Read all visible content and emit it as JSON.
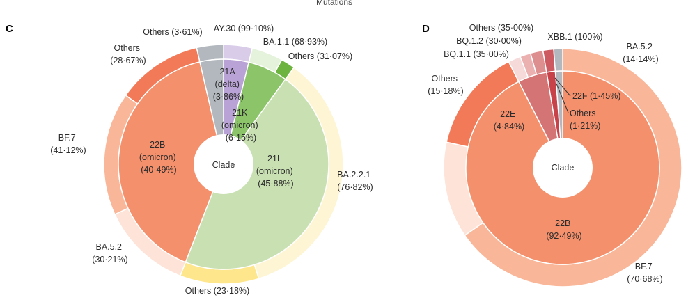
{
  "top_title": "Mutations",
  "chart_data": [
    {
      "type": "pie",
      "panel": "C",
      "center_label": "Clade",
      "inner_ring": [
        {
          "name": "21A",
          "line2": "(delta)",
          "line3": "(3·86%)",
          "value": 3.86,
          "color": "#b9a3d6"
        },
        {
          "name": "21K",
          "line2": "(omicron)",
          "line3": "(6·15%)",
          "value": 6.15,
          "color": "#8cc46a"
        },
        {
          "name": "21L",
          "line2": "(omicron)",
          "line3": "(45·88%)",
          "value": 45.88,
          "color": "#c8e0b2"
        },
        {
          "name": "22B",
          "line2": "(omicron)",
          "line3": "(40·49%)",
          "value": 40.49,
          "color": "#f4906c"
        },
        {
          "name": "Others",
          "line2": "",
          "line3": "",
          "value": 3.62,
          "color": "#b2b8bd"
        }
      ],
      "outer_ring": [
        {
          "name": "AY.30 (99·10%)",
          "value": 3.86,
          "color": "#d9cce9"
        },
        {
          "name": "BA.1.1 (68·93%)",
          "value": 4.24,
          "color": "#e6f3dc"
        },
        {
          "name": "Others (31·07%)",
          "value": 1.91,
          "color": "#6cb33f"
        },
        {
          "name": "BA.2.2.1",
          "name2": "(76·82%)",
          "value": 35.25,
          "color": "#fef5d4"
        },
        {
          "name": "Others (23·18%)",
          "value": 10.63,
          "color": "#fde68c"
        },
        {
          "name": "BA.5.2",
          "name2": "(30·21%)",
          "value": 12.23,
          "color": "#fde3d8"
        },
        {
          "name": "BF.7",
          "name2": "(41·12%)",
          "value": 16.65,
          "color": "#f9b698"
        },
        {
          "name": "Others",
          "name2": "(28·67%)",
          "value": 11.61,
          "color": "#f27a58"
        },
        {
          "name": "Others (3·61%)",
          "value": 3.62,
          "color": "#b2b8bd"
        }
      ]
    },
    {
      "type": "pie",
      "panel": "D",
      "center_label": "Clade",
      "inner_ring": [
        {
          "name": "22B",
          "line2": "(92·49%)",
          "value": 92.49,
          "color": "#f4906c"
        },
        {
          "name": "22E",
          "line2": "(4·84%)",
          "value": 4.84,
          "color": "#d47474"
        },
        {
          "name": "22F (1·45%)",
          "line2": "",
          "value": 1.45,
          "color": "#c8424a"
        },
        {
          "name": "Others",
          "line2": "(1·21%)",
          "value": 1.21,
          "color": "#b2b8bd"
        }
      ],
      "outer_ring": [
        {
          "name": "BF.7",
          "name2": "(70·68%)",
          "value": 65.37,
          "color": "#f9b698"
        },
        {
          "name": "BA.5.2",
          "name2": "(14·14%)",
          "value": 13.08,
          "color": "#fde3d8"
        },
        {
          "name": "Others",
          "name2": "(15·18%)",
          "value": 14.04,
          "color": "#f27a58"
        },
        {
          "name": "BQ.1.1 (35·00%)",
          "value": 1.69,
          "color": "#f6d9d9"
        },
        {
          "name": "BQ.1.2 (30·00%)",
          "value": 1.45,
          "color": "#ebb1b1"
        },
        {
          "name": "Others (35·00%)",
          "value": 1.7,
          "color": "#dd8e8e"
        },
        {
          "name": "XBB.1 (100%)",
          "value": 1.45,
          "color": "#cc5a60"
        },
        {
          "name": "",
          "value": 1.21,
          "color": "#b2b8bd"
        }
      ]
    }
  ]
}
